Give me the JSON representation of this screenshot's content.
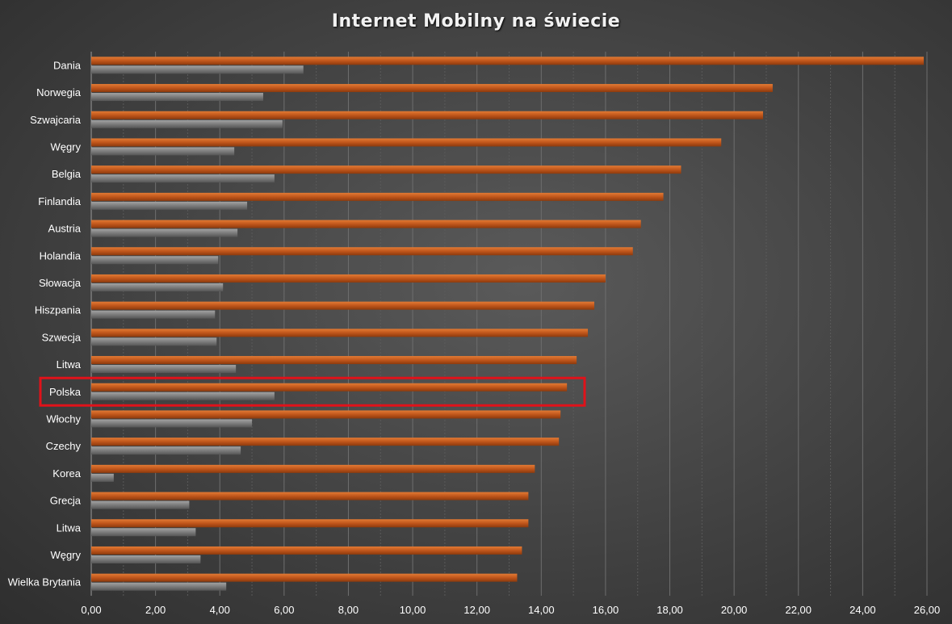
{
  "chart_data": {
    "type": "bar",
    "orientation": "horizontal",
    "title": "Internet Mobilny na świecie",
    "categories": [
      "Dania",
      "Norwegia",
      "Szwajcaria",
      "Węgry",
      "Belgia",
      "Finlandia",
      "Austria",
      "Holandia",
      "Słowacja",
      "Hiszpania",
      "Szwecja",
      "Litwa",
      "Polska",
      "Włochy",
      "Czechy",
      "Korea",
      "Grecja",
      "Litwa",
      "Węgry",
      "Wielka Brytania"
    ],
    "series": [
      {
        "values": [
          25.9,
          21.2,
          20.9,
          19.6,
          18.35,
          17.8,
          17.1,
          16.85,
          16.0,
          15.65,
          15.45,
          15.1,
          14.8,
          14.6,
          14.55,
          13.8,
          13.6,
          13.6,
          13.4,
          13.25
        ],
        "color": "#c0561b"
      },
      {
        "values": [
          6.6,
          5.35,
          5.95,
          4.45,
          5.7,
          4.85,
          4.55,
          3.95,
          4.1,
          3.85,
          3.9,
          4.5,
          5.7,
          5.0,
          4.65,
          0.7,
          3.05,
          3.25,
          3.4,
          4.2
        ],
        "color": "#7a7a7a"
      }
    ],
    "xlim": [
      0,
      26
    ],
    "x_ticks": [
      "0,00",
      "2,00",
      "4,00",
      "6,00",
      "8,00",
      "10,00",
      "12,00",
      "14,00",
      "16,00",
      "18,00",
      "20,00",
      "22,00",
      "24,00",
      "26,00"
    ],
    "grid": true,
    "highlight": {
      "category": "Polska",
      "color": "#e0121a"
    }
  }
}
